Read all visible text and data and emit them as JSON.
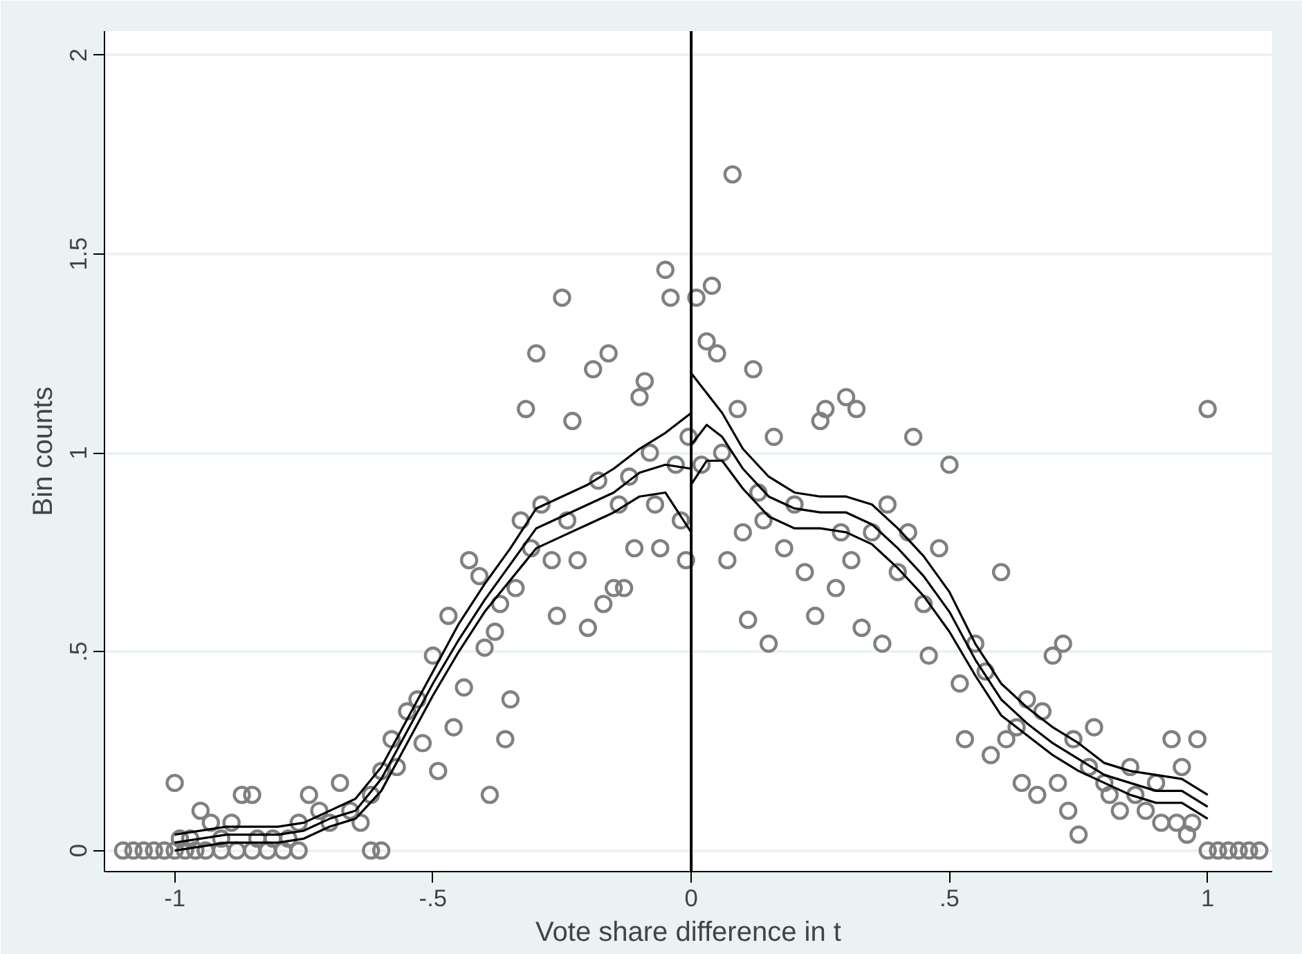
{
  "chart_data": {
    "type": "scatter",
    "xlabel": "Vote share difference in t",
    "ylabel": "Bin counts",
    "xlim": [
      -1.136,
      1.125
    ],
    "ylim": [
      -0.053,
      2.06
    ],
    "xticks": [
      -1,
      {
        "value": -0.5,
        "label": "-.5"
      },
      0,
      {
        "value": 0.5,
        "label": ".5"
      },
      1
    ],
    "yticks": [
      0,
      {
        "value": 0.5,
        "label": ".5"
      },
      1,
      1.5,
      2
    ],
    "grid": "y",
    "ref_lines": [
      {
        "axis": "x",
        "value": 0,
        "label": null,
        "color": "#000000"
      }
    ],
    "series": [
      {
        "marker": "circle",
        "color": "#808080",
        "x": [
          -1.1,
          -1.08,
          -1.06,
          -1.04,
          -1.02,
          -1.0,
          -0.98,
          -0.96,
          -0.94,
          -0.91,
          -0.88,
          -0.85,
          -0.82,
          -0.79,
          -0.76,
          -0.62,
          -0.6,
          -1.0,
          -0.99,
          -0.97,
          -0.95,
          -0.93,
          -0.91,
          -0.89,
          -0.87,
          -0.85,
          -0.84,
          -0.81,
          -0.78,
          -0.76,
          -0.74,
          -0.72,
          -0.7,
          -0.68,
          -0.66,
          -0.64,
          -0.62,
          -0.6,
          -0.58,
          -0.57,
          -0.55,
          -0.53,
          -0.52,
          -0.5,
          -0.49,
          -0.47,
          -0.46,
          -0.44,
          -0.43,
          -0.41,
          -0.4,
          -0.39,
          -0.38,
          -0.37,
          -0.36,
          -0.35,
          -0.34,
          -0.33,
          -0.32,
          -0.31,
          -0.3,
          -0.29,
          -0.27,
          -0.26,
          -0.25,
          -0.24,
          -0.23,
          -0.22,
          -0.2,
          -0.19,
          -0.18,
          -0.17,
          -0.16,
          -0.15,
          -0.14,
          -0.13,
          -0.12,
          -0.11,
          -0.1,
          -0.09,
          -0.08,
          -0.07,
          -0.06,
          -0.05,
          -0.04,
          -0.03,
          -0.02,
          -0.01,
          -0.005,
          0.01,
          0.02,
          0.03,
          0.04,
          0.05,
          0.06,
          0.07,
          0.08,
          0.09,
          0.1,
          0.11,
          0.12,
          0.13,
          0.14,
          0.15,
          0.16,
          0.18,
          0.2,
          0.22,
          0.24,
          0.25,
          0.26,
          0.28,
          0.29,
          0.3,
          0.31,
          0.32,
          0.33,
          0.35,
          0.37,
          0.38,
          0.4,
          0.42,
          0.43,
          0.45,
          0.46,
          0.48,
          0.5,
          0.52,
          0.53,
          0.55,
          0.57,
          0.58,
          0.6,
          0.61,
          0.63,
          0.64,
          0.65,
          0.67,
          0.68,
          0.7,
          0.71,
          0.72,
          0.73,
          0.74,
          0.75,
          0.77,
          0.78,
          0.8,
          0.81,
          0.83,
          0.85,
          0.86,
          0.88,
          0.9,
          0.91,
          0.93,
          0.94,
          0.95,
          0.96,
          0.97,
          0.98,
          1.0,
          1.0,
          1.02,
          1.04,
          1.06,
          1.08,
          1.1
        ],
        "values": [
          0,
          0,
          0,
          0,
          0,
          0,
          0,
          0,
          0,
          0,
          0,
          0,
          0,
          0,
          0,
          0,
          0,
          0.17,
          0.03,
          0.03,
          0.1,
          0.07,
          0.03,
          0.07,
          0.14,
          0.14,
          0.03,
          0.03,
          0.03,
          0.07,
          0.14,
          0.1,
          0.07,
          0.17,
          0.1,
          0.07,
          0.14,
          0.2,
          0.28,
          0.21,
          0.35,
          0.38,
          0.27,
          0.49,
          0.2,
          0.59,
          0.31,
          0.41,
          0.73,
          0.69,
          0.51,
          0.14,
          0.55,
          0.62,
          0.28,
          0.38,
          0.66,
          0.83,
          1.11,
          0.76,
          1.25,
          0.87,
          0.73,
          0.59,
          1.39,
          0.83,
          1.08,
          0.73,
          0.56,
          1.21,
          0.93,
          0.62,
          1.25,
          0.66,
          0.87,
          0.66,
          0.94,
          0.76,
          1.14,
          1.18,
          1.0,
          0.87,
          0.76,
          1.46,
          1.39,
          0.97,
          0.83,
          0.73,
          1.04,
          1.39,
          0.97,
          1.28,
          1.42,
          1.25,
          1.0,
          0.73,
          1.7,
          1.11,
          0.8,
          0.58,
          1.21,
          0.9,
          0.83,
          0.52,
          1.04,
          0.76,
          0.87,
          0.7,
          0.59,
          1.08,
          1.11,
          0.66,
          0.8,
          1.14,
          0.73,
          1.11,
          0.56,
          0.8,
          0.52,
          0.87,
          0.7,
          0.8,
          1.04,
          0.62,
          0.49,
          0.76,
          0.97,
          0.42,
          0.28,
          0.52,
          0.45,
          0.24,
          0.7,
          0.28,
          0.31,
          0.17,
          0.38,
          0.14,
          0.35,
          0.49,
          0.17,
          0.52,
          0.1,
          0.28,
          0.04,
          0.21,
          0.31,
          0.17,
          0.14,
          0.1,
          0.21,
          0.14,
          0.1,
          0.17,
          0.07,
          0.28,
          0.07,
          0.21,
          0.04,
          0.07,
          0.28,
          1.11,
          0,
          0,
          0,
          0,
          0,
          0
        ]
      },
      {
        "type": "line",
        "marker": "none",
        "color": "#000000",
        "x": [
          -1,
          -0.9,
          -0.8,
          -0.75,
          -0.7,
          -0.65,
          -0.6,
          -0.55,
          -0.5,
          -0.45,
          -0.4,
          -0.35,
          -0.3,
          -0.25,
          -0.2,
          -0.15,
          -0.1,
          -0.05,
          0
        ],
        "values": [
          0.02,
          0.04,
          0.04,
          0.05,
          0.08,
          0.1,
          0.18,
          0.3,
          0.42,
          0.53,
          0.63,
          0.72,
          0.81,
          0.84,
          0.87,
          0.9,
          0.95,
          0.97,
          0.96
        ]
      },
      {
        "type": "line",
        "marker": "none",
        "color": "#000000",
        "x": [
          -1,
          -0.9,
          -0.8,
          -0.75,
          -0.7,
          -0.65,
          -0.6,
          -0.55,
          -0.5,
          -0.45,
          -0.4,
          -0.35,
          -0.3,
          -0.25,
          -0.2,
          -0.15,
          -0.1,
          -0.05,
          0
        ],
        "values": [
          0.0,
          0.02,
          0.02,
          0.03,
          0.06,
          0.08,
          0.15,
          0.27,
          0.39,
          0.5,
          0.6,
          0.68,
          0.76,
          0.79,
          0.82,
          0.85,
          0.89,
          0.9,
          0.8
        ]
      },
      {
        "type": "line",
        "marker": "none",
        "color": "#000000",
        "x": [
          -1,
          -0.9,
          -0.8,
          -0.75,
          -0.7,
          -0.65,
          -0.6,
          -0.55,
          -0.5,
          -0.45,
          -0.4,
          -0.35,
          -0.3,
          -0.25,
          -0.2,
          -0.15,
          -0.1,
          -0.05,
          0
        ],
        "values": [
          0.04,
          0.06,
          0.06,
          0.07,
          0.1,
          0.13,
          0.21,
          0.33,
          0.45,
          0.57,
          0.67,
          0.76,
          0.86,
          0.89,
          0.92,
          0.96,
          1.01,
          1.05,
          1.1
        ]
      },
      {
        "type": "line",
        "marker": "none",
        "color": "#000000",
        "x": [
          0,
          0.03,
          0.06,
          0.1,
          0.15,
          0.2,
          0.25,
          0.3,
          0.35,
          0.4,
          0.45,
          0.5,
          0.55,
          0.6,
          0.65,
          0.7,
          0.75,
          0.8,
          0.85,
          0.9,
          0.95,
          1.0
        ],
        "values": [
          1.02,
          1.07,
          1.04,
          0.96,
          0.89,
          0.86,
          0.85,
          0.85,
          0.82,
          0.76,
          0.69,
          0.6,
          0.48,
          0.38,
          0.32,
          0.27,
          0.23,
          0.19,
          0.17,
          0.15,
          0.15,
          0.11
        ]
      },
      {
        "type": "line",
        "marker": "none",
        "color": "#000000",
        "x": [
          0,
          0.03,
          0.06,
          0.1,
          0.15,
          0.2,
          0.25,
          0.3,
          0.35,
          0.4,
          0.45,
          0.5,
          0.55,
          0.6,
          0.65,
          0.7,
          0.75,
          0.8,
          0.85,
          0.9,
          0.95,
          1.0
        ],
        "values": [
          0.92,
          0.98,
          0.98,
          0.91,
          0.84,
          0.81,
          0.81,
          0.8,
          0.77,
          0.71,
          0.64,
          0.55,
          0.44,
          0.34,
          0.29,
          0.24,
          0.2,
          0.17,
          0.14,
          0.12,
          0.12,
          0.08
        ]
      },
      {
        "type": "line",
        "marker": "none",
        "color": "#000000",
        "x": [
          0,
          0.03,
          0.06,
          0.1,
          0.15,
          0.2,
          0.25,
          0.3,
          0.35,
          0.4,
          0.45,
          0.5,
          0.55,
          0.6,
          0.65,
          0.7,
          0.75,
          0.8,
          0.85,
          0.9,
          0.95,
          1.0
        ],
        "values": [
          1.2,
          1.15,
          1.1,
          1.01,
          0.94,
          0.9,
          0.89,
          0.89,
          0.87,
          0.81,
          0.74,
          0.65,
          0.52,
          0.42,
          0.36,
          0.31,
          0.27,
          0.22,
          0.2,
          0.19,
          0.18,
          0.14
        ]
      }
    ]
  }
}
